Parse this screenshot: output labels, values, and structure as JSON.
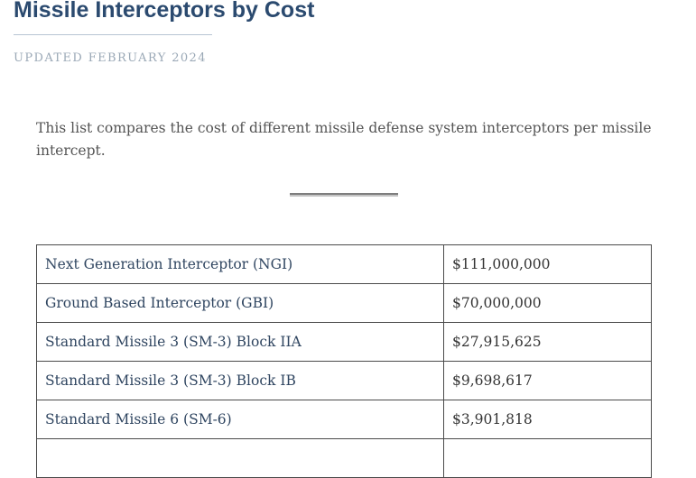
{
  "page": {
    "title": "Missile Interceptors by Cost",
    "updated": "UPDATED FEBRUARY 2024",
    "intro": "This list compares the cost of different missile defense system interceptors per missile intercept."
  },
  "table": {
    "rows": [
      {
        "name": "Next Generation Interceptor (NGI)",
        "cost": "$111,000,000"
      },
      {
        "name": "Ground Based Interceptor (GBI)",
        "cost": "$70,000,000"
      },
      {
        "name": "Standard Missile 3 (SM-3) Block IIA",
        "cost": "$27,915,625"
      },
      {
        "name": "Standard Missile 3 (SM-3) Block IB",
        "cost": "$9,698,617"
      },
      {
        "name": "Standard Missile 6 (SM-6)",
        "cost": "$3,901,818"
      },
      {
        "name": "",
        "cost": ""
      }
    ]
  },
  "colors": {
    "title": "#2b4a6f",
    "updated": "#9aa8b6",
    "body_text": "#555555",
    "table_border": "#4a4a4a"
  }
}
